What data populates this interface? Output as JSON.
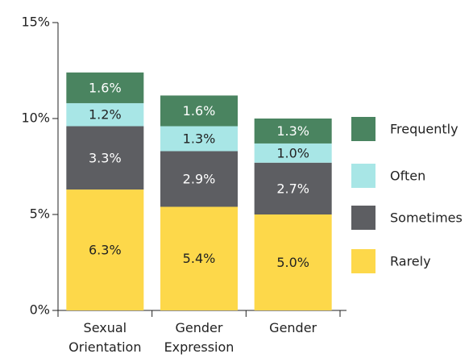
{
  "chart_data": {
    "type": "stacked_bar",
    "categories": [
      "Sexual Orientation",
      "Gender Expression",
      "Gender"
    ],
    "series": [
      {
        "name": "Rarely",
        "color": "#fdd84a",
        "values": [
          6.3,
          5.4,
          5.0
        ],
        "value_labels": [
          "6.3%",
          "5.4%",
          "5.0%"
        ]
      },
      {
        "name": "Sometimes",
        "color": "#5d5e62",
        "values": [
          3.3,
          2.9,
          2.7
        ],
        "value_labels": [
          "3.3%",
          "2.9%",
          "2.7%"
        ]
      },
      {
        "name": "Often",
        "color": "#a8e6e6",
        "values": [
          1.2,
          1.3,
          1.0
        ],
        "value_labels": [
          "1.2%",
          "1.3%",
          "1.0%"
        ]
      },
      {
        "name": "Frequently",
        "color": "#4a8460",
        "values": [
          1.6,
          1.6,
          1.3
        ],
        "value_labels": [
          "1.6%",
          "1.6%",
          "1.3%"
        ]
      }
    ],
    "ylim": [
      0,
      15
    ],
    "yticks": [
      {
        "value": 0,
        "label": "0%"
      },
      {
        "value": 5,
        "label": "5%"
      },
      {
        "value": 10,
        "label": "10%"
      },
      {
        "value": 15,
        "label": "15%"
      }
    ],
    "legend": "right"
  }
}
